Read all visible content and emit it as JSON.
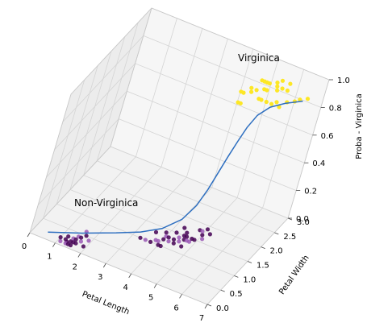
{
  "chart_data": {
    "type": "scatter",
    "projection": "3d",
    "xlabel": "Petal Length",
    "ylabel": "Petal Width",
    "zlabel": "Proba - Virginica",
    "x_ticks": [
      0,
      1,
      2,
      3,
      4,
      5,
      6,
      7
    ],
    "y_ticks": [
      0.0,
      0.5,
      1.0,
      1.5,
      2.0,
      2.5,
      3.0
    ],
    "z_ticks": [
      0.0,
      0.2,
      0.4,
      0.6,
      0.8,
      1.0
    ],
    "x_tick_labels": [
      "0",
      "1",
      "2",
      "3",
      "4",
      "5",
      "6",
      "7"
    ],
    "y_tick_labels": [
      "0.0",
      "0.5",
      "1.0",
      "1.5",
      "2.0",
      "2.5",
      "3.0"
    ],
    "z_tick_labels": [
      "0.0",
      "0.2",
      "0.4",
      "0.6",
      "0.8",
      "1.0"
    ],
    "xlim": [
      0,
      7
    ],
    "ylim": [
      0,
      3
    ],
    "zlim": [
      0,
      1
    ],
    "grid": true,
    "annotations": [
      "Virginica",
      "Non-Virginica"
    ],
    "colors": {
      "non_virginica_dark": "#440154",
      "non_virginica_light": "#9b59b6",
      "virginica": "#fde725",
      "curve": "#2e6fc0",
      "pane": "#f2f2f2",
      "grid": "#d4d4d4"
    },
    "series": [
      {
        "kind": "scatter",
        "points": [
          [
            1.1,
            0.1,
            0
          ],
          [
            1.2,
            0.2,
            0
          ],
          [
            1.3,
            0.15,
            0
          ],
          [
            1.3,
            0.1,
            0
          ],
          [
            1.4,
            0.2,
            0
          ],
          [
            1.4,
            0.1,
            0
          ],
          [
            1.4,
            0.3,
            0
          ],
          [
            1.5,
            0.2,
            0
          ],
          [
            1.5,
            0.1,
            0
          ],
          [
            1.5,
            0.4,
            0
          ],
          [
            1.6,
            0.2,
            0
          ],
          [
            1.6,
            0.4,
            0
          ],
          [
            1.7,
            0.3,
            0
          ],
          [
            1.7,
            0.5,
            0
          ],
          [
            1.9,
            0.2,
            0
          ],
          [
            1.9,
            0.4,
            0
          ],
          [
            1.2,
            0.3,
            0
          ],
          [
            1.5,
            0.3,
            0
          ],
          [
            1.6,
            0.6,
            0
          ],
          [
            1.0,
            0.2,
            0
          ],
          [
            3.3,
            1.0,
            0
          ],
          [
            3.5,
            1.0,
            0
          ],
          [
            3.6,
            1.3,
            0
          ],
          [
            3.7,
            1.0,
            0
          ],
          [
            3.9,
            1.1,
            0
          ],
          [
            3.9,
            1.4,
            0
          ],
          [
            4.0,
            1.2,
            0
          ],
          [
            4.0,
            1.3,
            0
          ],
          [
            4.1,
            1.0,
            0
          ],
          [
            4.1,
            1.3,
            0
          ],
          [
            4.2,
            1.2,
            0
          ],
          [
            4.2,
            1.5,
            0
          ],
          [
            4.3,
            1.3,
            0
          ],
          [
            4.4,
            1.4,
            0
          ],
          [
            4.4,
            1.2,
            0
          ],
          [
            4.5,
            1.5,
            0
          ],
          [
            4.5,
            1.3,
            0
          ],
          [
            4.6,
            1.4,
            0
          ],
          [
            4.6,
            1.5,
            0
          ],
          [
            4.7,
            1.4,
            0
          ],
          [
            4.7,
            1.2,
            0
          ],
          [
            4.8,
            1.8,
            0
          ],
          [
            4.8,
            1.4,
            0
          ],
          [
            4.9,
            1.5,
            0
          ],
          [
            5.0,
            1.7,
            0
          ],
          [
            5.1,
            1.6,
            0
          ],
          [
            4.5,
            1.6,
            0
          ],
          [
            4.8,
            1.5,
            0
          ],
          [
            3.8,
            1.1,
            0
          ],
          [
            4.0,
            1.0,
            0
          ],
          [
            4.3,
            1.7,
            0
          ],
          [
            4.9,
            1.8,
            0
          ],
          [
            5.2,
            1.8,
            0
          ],
          [
            5.0,
            1.9,
            0
          ],
          [
            4.8,
            1.8,
            1
          ],
          [
            4.9,
            1.8,
            1
          ],
          [
            5.0,
            2.0,
            1
          ],
          [
            5.1,
            1.9,
            1
          ],
          [
            5.1,
            2.3,
            1
          ],
          [
            5.2,
            2.0,
            1
          ],
          [
            5.3,
            2.3,
            1
          ],
          [
            5.4,
            2.1,
            1
          ],
          [
            5.5,
            1.8,
            1
          ],
          [
            5.5,
            2.1,
            1
          ],
          [
            5.6,
            1.8,
            1
          ],
          [
            5.6,
            2.4,
            1
          ],
          [
            5.7,
            2.3,
            1
          ],
          [
            5.8,
            1.8,
            1
          ],
          [
            5.8,
            2.2,
            1
          ],
          [
            5.9,
            2.3,
            1
          ],
          [
            6.0,
            1.8,
            1
          ],
          [
            6.0,
            2.5,
            1
          ],
          [
            6.1,
            1.9,
            1
          ],
          [
            6.1,
            2.3,
            1
          ],
          [
            6.3,
            1.8,
            1
          ],
          [
            6.4,
            2.0,
            1
          ],
          [
            6.6,
            2.1,
            1
          ],
          [
            6.7,
            2.2,
            1
          ],
          [
            6.9,
            2.3,
            1
          ],
          [
            5.1,
            1.5,
            1
          ],
          [
            5.0,
            1.5,
            1
          ],
          [
            5.7,
            2.5,
            1
          ],
          [
            5.4,
            2.3,
            1
          ],
          [
            5.2,
            2.3,
            1
          ]
        ]
      },
      {
        "kind": "line",
        "x": [
          0.5,
          1.5,
          2.5,
          3.2,
          3.8,
          4.3,
          4.6,
          4.8,
          4.95,
          5.1,
          5.25,
          5.4,
          5.6,
          5.9,
          6.3,
          6.8
        ],
        "y": [
          0.2,
          0.52,
          0.84,
          1.07,
          1.26,
          1.42,
          1.52,
          1.58,
          1.63,
          1.68,
          1.73,
          1.78,
          1.84,
          1.94,
          2.07,
          2.23
        ],
        "z": [
          0.0,
          0.0,
          0.01,
          0.02,
          0.05,
          0.12,
          0.22,
          0.34,
          0.46,
          0.58,
          0.69,
          0.79,
          0.88,
          0.94,
          0.97,
          0.99
        ]
      }
    ]
  }
}
